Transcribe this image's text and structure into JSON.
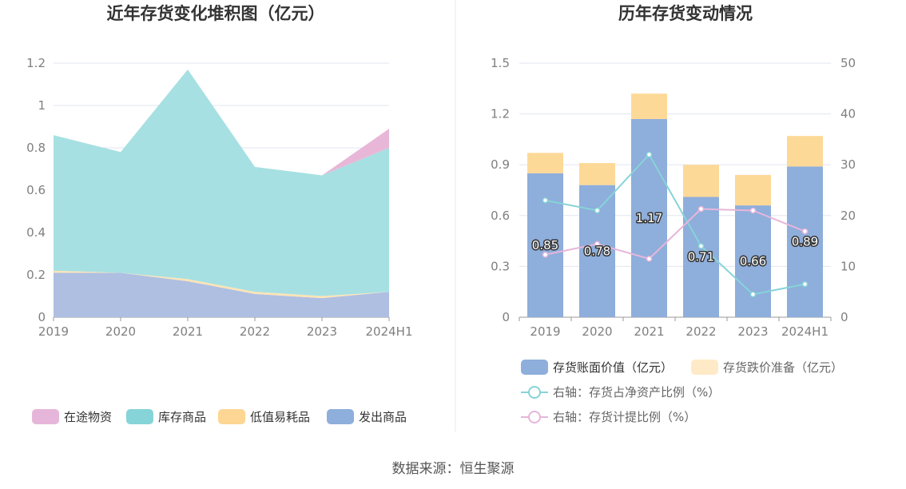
{
  "colors": {
    "in_transit": "#e8b7d8",
    "stock": "#a6e0e2",
    "low_value": "#fde4b5",
    "shipped": "#aebfe2",
    "legend_in_transit": "#e6b6da",
    "legend_stock": "#86d4d8",
    "legend_low_value": "#fdd693",
    "legend_shipped": "#8eaedb",
    "bar_book": "#8eaedb",
    "bar_reserve": "#fdd998",
    "line_net": "#86d4d8",
    "line_provision": "#e6b6da",
    "grid": "#e0e6f1",
    "axis": "#999999",
    "divider": "#e8e8e8"
  },
  "footer": "数据来源：恒生聚源",
  "chart_data": [
    {
      "type": "area",
      "stacked": true,
      "title": "近年存货变化堆积图（亿元）",
      "categories": [
        "2019",
        "2020",
        "2021",
        "2022",
        "2023",
        "2024H1"
      ],
      "ylim": [
        0,
        1.2
      ],
      "yticks": [
        "0",
        "0.2",
        "0.4",
        "0.6",
        "0.8",
        "1",
        "1.2"
      ],
      "grid": true,
      "legend_position": "bottom",
      "series": [
        {
          "name": "发出商品",
          "color_key": "shipped",
          "legend_color_key": "legend_shipped",
          "values": [
            0.21,
            0.21,
            0.17,
            0.11,
            0.09,
            0.12
          ]
        },
        {
          "name": "低值易耗品",
          "color_key": "low_value",
          "legend_color_key": "legend_low_value",
          "values": [
            0.01,
            0.0,
            0.01,
            0.01,
            0.01,
            0.0
          ]
        },
        {
          "name": "库存商品",
          "color_key": "stock",
          "legend_color_key": "legend_stock",
          "values": [
            0.64,
            0.57,
            0.99,
            0.59,
            0.57,
            0.68
          ]
        },
        {
          "name": "在途物资",
          "color_key": "in_transit",
          "legend_color_key": "legend_in_transit",
          "values": [
            0,
            0,
            0,
            0,
            0,
            0.09
          ]
        }
      ],
      "legend_order": [
        "在途物资",
        "库存商品",
        "低值易耗品",
        "发出商品"
      ]
    },
    {
      "type": "bar",
      "stacked": true,
      "title": "历年存货变动情况",
      "categories": [
        "2019",
        "2020",
        "2021",
        "2022",
        "2023",
        "2024H1"
      ],
      "ylim": [
        0,
        1.5
      ],
      "yticks": [
        "0",
        "0.3",
        "0.6",
        "0.9",
        "1.2",
        "1.5"
      ],
      "y2lim": [
        0,
        50
      ],
      "y2ticks": [
        "0",
        "10",
        "20",
        "30",
        "40",
        "50"
      ],
      "grid": true,
      "legend_position": "bottom",
      "series": [
        {
          "name": "存货账面价值（亿元）",
          "kind": "bar",
          "color_key": "bar_book",
          "values": [
            0.85,
            0.78,
            1.17,
            0.71,
            0.66,
            0.89
          ],
          "labels": [
            "0.85",
            "0.78",
            "1.17",
            "0.71",
            "0.66",
            "0.89"
          ]
        },
        {
          "name": "存货跌价准备（亿元）",
          "kind": "bar",
          "color_key": "bar_reserve",
          "values": [
            0.12,
            0.13,
            0.15,
            0.19,
            0.18,
            0.18
          ]
        },
        {
          "name": "右轴：存货占净资产比例（%）",
          "kind": "line",
          "axis": "right",
          "color_key": "line_net",
          "values": [
            23.0,
            21.0,
            32.0,
            14.0,
            4.5,
            6.5
          ]
        },
        {
          "name": "右轴：存货计提比例（%）",
          "kind": "line",
          "axis": "right",
          "color_key": "line_provision",
          "values": [
            12.3,
            14.4,
            11.5,
            21.3,
            21.0,
            16.9
          ]
        }
      ]
    }
  ]
}
